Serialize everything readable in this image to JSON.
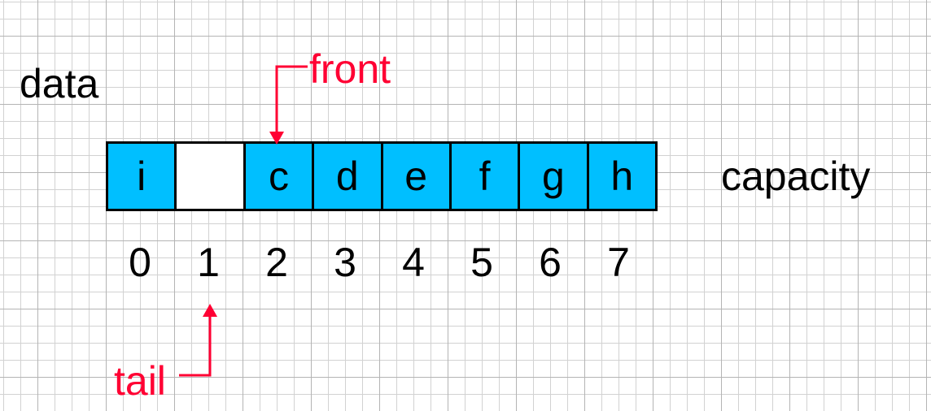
{
  "labels": {
    "data": "data",
    "capacity": "capacity",
    "front": "front",
    "tail": "tail"
  },
  "array": {
    "cells": [
      "i",
      "",
      "c",
      "d",
      "e",
      "f",
      "g",
      "h"
    ],
    "indices": [
      "0",
      "1",
      "2",
      "3",
      "4",
      "5",
      "6",
      "7"
    ]
  },
  "colors": {
    "filled_cell": "#00bfff",
    "empty_cell": "#ffffff",
    "pointer": "#ff0033"
  }
}
